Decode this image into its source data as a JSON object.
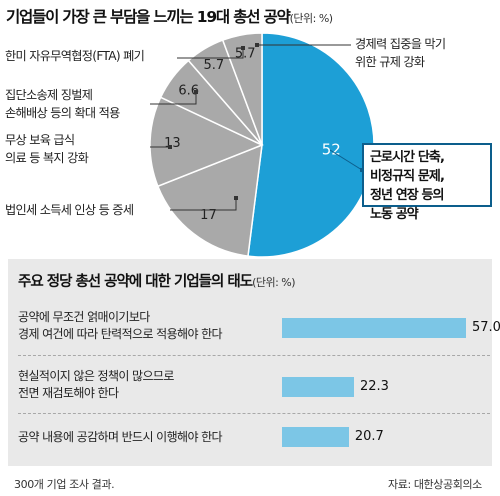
{
  "pie_chart": {
    "title": "기업들이 가장 큰 부담을 느끼는 19대 총선 공약",
    "unit": "(단위: %)",
    "highlight_color": "#1d9fd6",
    "slice_color": "#a9a9a9"
  },
  "bar_chart": {
    "title": "주요 정당 총선 공약에 대한 기업들의 태도",
    "unit": "(단위: %)",
    "bar_color": "#7cc6e6",
    "panel_color": "#e9e9e9"
  },
  "footer": {
    "note": "300개 기업 조사 결과.",
    "source": "자료: 대한상공회의소"
  },
  "chart_data": [
    {
      "type": "pie",
      "title": "기업들이 가장 큰 부담을 느끼는 19대 총선 공약",
      "unit": "%",
      "slices": [
        {
          "label_lines": [
            "근로시간 단축,",
            "비정규직 문제,",
            "정년 연장 등의",
            "노동 공약"
          ],
          "value": 52,
          "value_label": "52"
        },
        {
          "label_lines": [
            "법인세 소득세 인상 등 증세"
          ],
          "value": 17,
          "value_label": "17"
        },
        {
          "label_lines": [
            "무상 보육 급식",
            "의료 등 복지 강화"
          ],
          "value": 13,
          "value_label": "13"
        },
        {
          "label_lines": [
            "집단소송제 징벌제",
            "손해배상 등의 확대 적용"
          ],
          "value": 6.6,
          "value_label": "6.6"
        },
        {
          "label_lines": [
            "한미 자유무역협정(FTA) 폐기"
          ],
          "value": 5.7,
          "value_label": "5.7"
        },
        {
          "label_lines": [
            "경제력 집중을 막기",
            "위한 규제 강화"
          ],
          "value": 5.7,
          "value_label": "5.7"
        }
      ]
    },
    {
      "type": "bar",
      "orientation": "horizontal",
      "title": "주요 정당 총선 공약에 대한 기업들의 태도",
      "unit": "%",
      "xlim": [
        0,
        57
      ],
      "categories": [
        [
          "공약에 무조건 얽매이기보다",
          "경제 여건에 따라 탄력적으로 적용해야 한다"
        ],
        [
          "현실적이지 않은 정책이 많으므로",
          "전면 재검토해야 한다"
        ],
        [
          "공약 내용에 공감하며 반드시 이행해야 한다"
        ]
      ],
      "values": [
        57.0,
        22.3,
        20.7
      ],
      "value_labels": [
        "57.0",
        "22.3",
        "20.7"
      ]
    }
  ]
}
